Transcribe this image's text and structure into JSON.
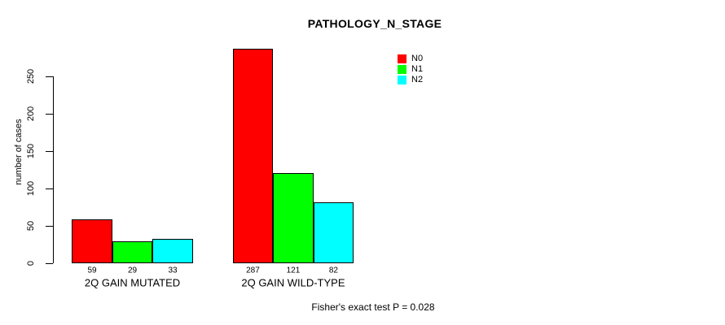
{
  "chart_data": {
    "type": "bar",
    "title": "PATHOLOGY_N_STAGE",
    "xlabel": "",
    "ylabel": "number of cases",
    "ylim": [
      0,
      250
    ],
    "yticks": [
      0,
      50,
      100,
      150,
      200,
      250
    ],
    "grid": false,
    "legend_position": "top-right",
    "show_value_labels": true,
    "bar_border_color": "#000000",
    "categories": [
      "2Q GAIN MUTATED",
      "2Q GAIN WILD-TYPE"
    ],
    "series": [
      {
        "name": "N0",
        "color": "#FF0000",
        "values": [
          59,
          287
        ]
      },
      {
        "name": "N1",
        "color": "#00FF00",
        "values": [
          29,
          121
        ]
      },
      {
        "name": "N2",
        "color": "#00FFFF",
        "values": [
          33,
          82
        ]
      }
    ],
    "annotation": "Fisher's exact test P = 0.028"
  }
}
